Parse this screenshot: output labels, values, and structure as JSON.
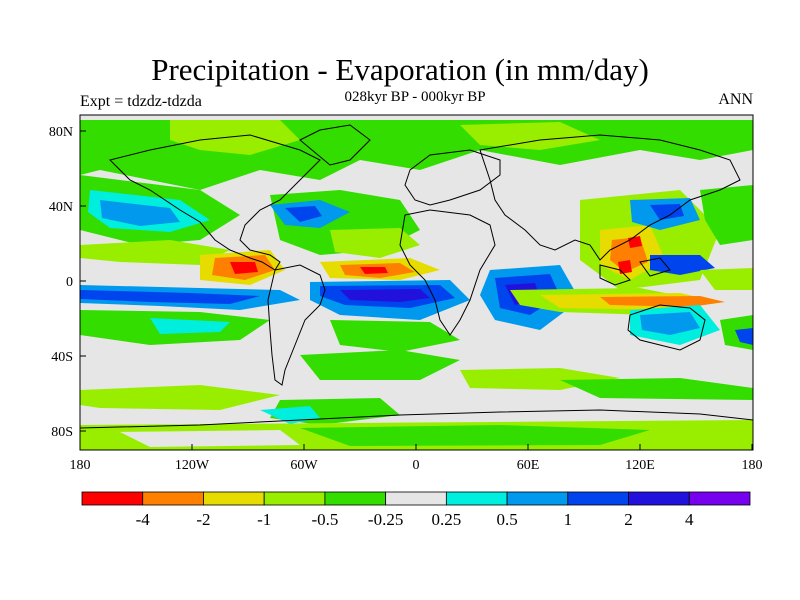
{
  "title": "Precipitation - Evaporation (in mm/day)",
  "subtitle": "028kyr BP - 000kyr BP",
  "left_label": "Expt = tdzdz-tdzda",
  "right_label": "ANN",
  "axes": {
    "x_ticks": [
      "180",
      "120W",
      "60W",
      "0",
      "60E",
      "120E",
      "180"
    ],
    "y_ticks": [
      "80N",
      "40N",
      "0",
      "40S",
      "80S"
    ]
  },
  "colorbar": {
    "colors": [
      "#ff0000",
      "#ff8000",
      "#e6dc00",
      "#99ee00",
      "#33dd00",
      "#e6e6e6",
      "#00eedd",
      "#0099ee",
      "#0044ee",
      "#2211dd",
      "#7700ee"
    ],
    "labels": [
      "-4",
      "-2",
      "-1",
      "-0.5",
      "-0.25",
      "0.25",
      "0.5",
      "1",
      "2",
      "4"
    ]
  }
}
